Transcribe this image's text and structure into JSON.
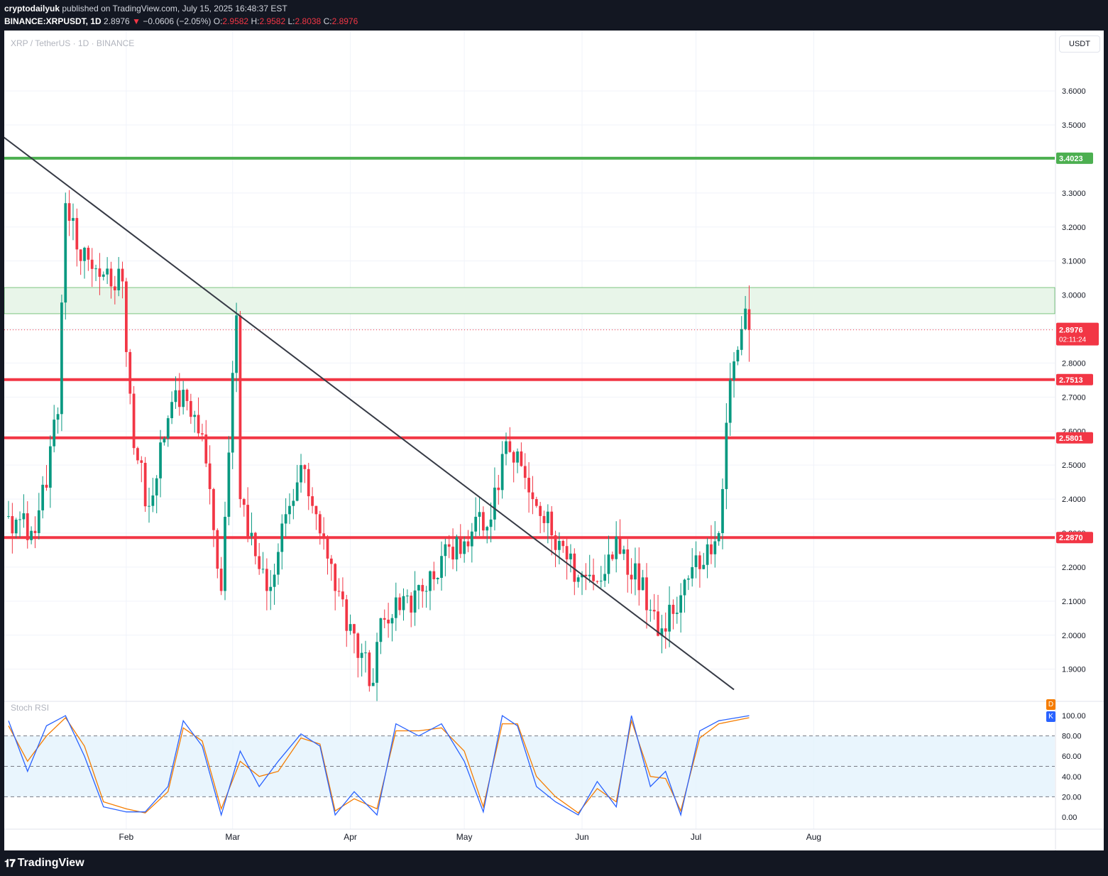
{
  "header": {
    "publisher": "cryptodailyuk",
    "published_text": "published on TradingView.com, July 15, 2025 16:48:37 EST",
    "symbol_line": "BINANCE:XRPUSDT, 1D",
    "last": "2.8976",
    "change_arrow": "▼",
    "change": "−0.0606 (−2.05%)",
    "o_label": "O:",
    "o": "2.9582",
    "h_label": "H:",
    "h": "2.9582",
    "l_label": "L:",
    "l": "2.8038",
    "c_label": "C:",
    "c": "2.8976"
  },
  "chart_title": "XRP / TetherUS · 1D · BINANCE",
  "currency_button": "USDT",
  "footer_brand": "TradingView",
  "colors": {
    "up": "#089981",
    "down": "#f23645",
    "resistance": "#4caf50",
    "support": "#f23645",
    "zone_fill": "#e8f5e9",
    "k_line": "#2962ff",
    "d_line": "#f57c00",
    "background": "#ffffff",
    "grid": "#f0f3fa"
  },
  "chart_data": [
    {
      "type": "candlestick",
      "title": "XRP / TetherUS · 1D · BINANCE",
      "y_axis": {
        "range": [
          1.82,
          3.74
        ],
        "ticks": [
          "3.6000",
          "3.5000",
          "3.4000",
          "3.3000",
          "3.2000",
          "3.1000",
          "3.0000",
          "2.9000",
          "2.8000",
          "2.7000",
          "2.6000",
          "2.5000",
          "2.4000",
          "2.3000",
          "2.2000",
          "2.1000",
          "2.0000",
          "1.9000"
        ]
      },
      "x_axis": {
        "labels": [
          "Feb",
          "Mar",
          "Apr",
          "May",
          "Jun",
          "Jul",
          "Aug"
        ],
        "first_date": "2025-01-01",
        "last_date": "2025-08-14"
      },
      "grid": true,
      "horizontal_levels": [
        {
          "label": "3.4023",
          "value": 3.4023,
          "color": "#4caf50"
        },
        {
          "label": "2.7513",
          "value": 2.7513,
          "color": "#f23645"
        },
        {
          "label": "2.5801",
          "value": 2.5801,
          "color": "#f23645"
        },
        {
          "label": "2.2870",
          "value": 2.287,
          "color": "#f23645"
        }
      ],
      "zone": {
        "from": 2.945,
        "to": 3.022
      },
      "last_price": {
        "label": "2.8976",
        "value": 2.8976,
        "countdown": "02:11:24"
      },
      "trendline": {
        "points": [
          {
            "date": "2024-12-30",
            "price": 3.47
          },
          {
            "date": "2025-07-11",
            "price": 1.84
          }
        ]
      },
      "candles_overview": [
        {
          "date": "2025-01-01",
          "close": 2.35
        },
        {
          "date": "2025-01-08",
          "close": 2.3
        },
        {
          "date": "2025-01-14",
          "close": 2.65
        },
        {
          "date": "2025-01-16",
          "close": 3.27
        },
        {
          "date": "2025-01-20",
          "close": 3.1
        },
        {
          "date": "2025-01-31",
          "close": 3.04
        },
        {
          "date": "2025-02-03",
          "close": 2.55
        },
        {
          "date": "2025-02-07",
          "close": 2.38
        },
        {
          "date": "2025-02-14",
          "close": 2.72
        },
        {
          "date": "2025-02-21",
          "close": 2.59
        },
        {
          "date": "2025-02-26",
          "close": 2.13
        },
        {
          "date": "2025-03-02",
          "close": 2.94
        },
        {
          "date": "2025-03-03",
          "close": 2.4
        },
        {
          "date": "2025-03-10",
          "close": 2.13
        },
        {
          "date": "2025-03-19",
          "close": 2.5
        },
        {
          "date": "2025-03-22",
          "close": 2.38
        },
        {
          "date": "2025-03-28",
          "close": 2.13
        },
        {
          "date": "2025-04-07",
          "close": 1.86
        },
        {
          "date": "2025-04-09",
          "close": 2.05
        },
        {
          "date": "2025-04-21",
          "close": 2.13
        },
        {
          "date": "2025-04-27",
          "close": 2.26
        },
        {
          "date": "2025-05-08",
          "close": 2.34
        },
        {
          "date": "2025-05-12",
          "close": 2.57
        },
        {
          "date": "2025-05-19",
          "close": 2.4
        },
        {
          "date": "2025-05-31",
          "close": 2.17
        },
        {
          "date": "2025-06-06",
          "close": 2.16
        },
        {
          "date": "2025-06-10",
          "close": 2.29
        },
        {
          "date": "2025-06-22",
          "close": 2.02
        },
        {
          "date": "2025-06-30",
          "close": 2.2
        },
        {
          "date": "2025-07-07",
          "close": 2.3
        },
        {
          "date": "2025-07-10",
          "close": 2.75
        },
        {
          "date": "2025-07-14",
          "close": 2.96
        },
        {
          "date": "2025-07-15",
          "open": 2.9582,
          "high": 2.9582,
          "low": 2.8038,
          "close": 2.8976
        }
      ]
    },
    {
      "type": "line",
      "title": "Stoch RSI",
      "y_axis": {
        "range": [
          -5,
          105
        ],
        "ticks": [
          "100.00",
          "80.00",
          "60.00",
          "40.00",
          "20.00",
          "0.00"
        ]
      },
      "bands": {
        "upper": 80,
        "middle": 50,
        "lower": 20
      },
      "legend": [
        "D",
        "K"
      ],
      "series": [
        {
          "name": "K",
          "color": "#2962ff",
          "x": [
            "2025-01-01",
            "2025-01-06",
            "2025-01-11",
            "2025-01-16",
            "2025-01-21",
            "2025-01-26",
            "2025-02-01",
            "2025-02-06",
            "2025-02-12",
            "2025-02-16",
            "2025-02-21",
            "2025-02-26",
            "2025-03-03",
            "2025-03-08",
            "2025-03-13",
            "2025-03-19",
            "2025-03-24",
            "2025-03-28",
            "2025-04-02",
            "2025-04-08",
            "2025-04-13",
            "2025-04-19",
            "2025-04-25",
            "2025-05-01",
            "2025-05-06",
            "2025-05-11",
            "2025-05-15",
            "2025-05-20",
            "2025-05-25",
            "2025-05-31",
            "2025-06-05",
            "2025-06-10",
            "2025-06-14",
            "2025-06-19",
            "2025-06-23",
            "2025-06-27",
            "2025-07-02",
            "2025-07-07",
            "2025-07-15"
          ],
          "values": [
            95,
            45,
            90,
            100,
            60,
            10,
            5,
            5,
            30,
            95,
            70,
            2,
            65,
            30,
            55,
            82,
            70,
            2,
            25,
            2,
            92,
            80,
            92,
            55,
            5,
            100,
            90,
            30,
            15,
            2,
            35,
            10,
            100,
            30,
            45,
            2,
            85,
            95,
            100
          ]
        },
        {
          "name": "D",
          "color": "#f57c00",
          "x": [
            "2025-01-01",
            "2025-01-06",
            "2025-01-11",
            "2025-01-16",
            "2025-01-21",
            "2025-01-26",
            "2025-02-01",
            "2025-02-06",
            "2025-02-12",
            "2025-02-16",
            "2025-02-21",
            "2025-02-26",
            "2025-03-03",
            "2025-03-08",
            "2025-03-13",
            "2025-03-19",
            "2025-03-24",
            "2025-03-28",
            "2025-04-02",
            "2025-04-08",
            "2025-04-13",
            "2025-04-19",
            "2025-04-25",
            "2025-05-01",
            "2025-05-06",
            "2025-05-11",
            "2025-05-15",
            "2025-05-20",
            "2025-05-25",
            "2025-05-31",
            "2025-06-05",
            "2025-06-10",
            "2025-06-14",
            "2025-06-19",
            "2025-06-23",
            "2025-06-27",
            "2025-07-02",
            "2025-07-07",
            "2025-07-15"
          ],
          "values": [
            90,
            55,
            80,
            98,
            70,
            15,
            8,
            4,
            25,
            88,
            75,
            8,
            55,
            40,
            45,
            78,
            72,
            6,
            18,
            8,
            85,
            85,
            88,
            65,
            10,
            92,
            92,
            40,
            20,
            4,
            28,
            15,
            95,
            40,
            38,
            6,
            78,
            92,
            98
          ]
        }
      ]
    }
  ]
}
